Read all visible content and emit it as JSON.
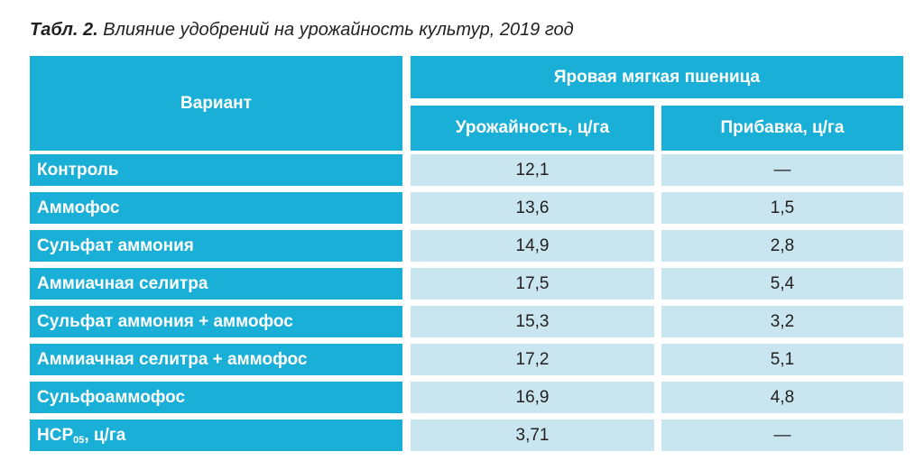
{
  "caption": {
    "label": "Табл. 2.",
    "text": "Влияние удобрений на урожайность культур, 2019 год"
  },
  "header": {
    "variant": "Вариант",
    "group": "Яровая мягкая пшеница",
    "col_yield": "Урожайность, ц/га",
    "col_gain": "Прибавка, ц/га"
  },
  "rows": [
    {
      "label": "Контроль",
      "yield": "12,1",
      "gain": "—"
    },
    {
      "label": "Аммофос",
      "yield": "13,6",
      "gain": "1,5"
    },
    {
      "label": "Сульфат аммония",
      "yield": "14,9",
      "gain": "2,8"
    },
    {
      "label": "Аммиачная селитра",
      "yield": "17,5",
      "gain": "5,4"
    },
    {
      "label": "Сульфат аммония + аммофос",
      "yield": "15,3",
      "gain": "3,2"
    },
    {
      "label": "Аммиачная селитра + аммофос",
      "yield": "17,2",
      "gain": "5,1"
    },
    {
      "label": "Сульфоаммофос",
      "yield": "16,9",
      "gain": "4,8"
    }
  ],
  "hsr_row": {
    "label_main": "НСР",
    "label_sub": "05",
    "label_tail": ", ц/га",
    "yield": "3,71",
    "gain": "—"
  }
}
